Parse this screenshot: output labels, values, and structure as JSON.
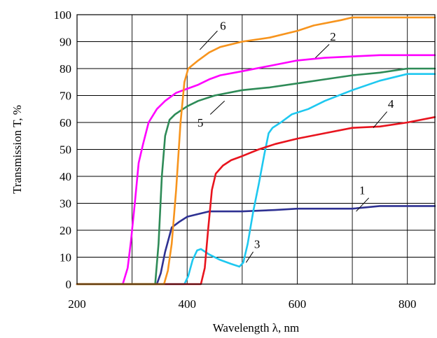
{
  "chart_data": {
    "type": "line",
    "xlabel": "Wavelength λ, nm",
    "ylabel": "Transmission T, %",
    "xlim": [
      200,
      850
    ],
    "ylim": [
      0,
      100
    ],
    "x_ticks": [
      200,
      400,
      600,
      800
    ],
    "x_grid": [
      200,
      300,
      400,
      500,
      600,
      700,
      800
    ],
    "y_ticks": [
      0,
      10,
      20,
      30,
      40,
      50,
      60,
      70,
      80,
      90,
      100
    ],
    "grid": true,
    "series": [
      {
        "name": "1",
        "color": "#2e3192",
        "points": [
          [
            200,
            0
          ],
          [
            345,
            0
          ],
          [
            352,
            4
          ],
          [
            360,
            12
          ],
          [
            372,
            21
          ],
          [
            385,
            23
          ],
          [
            400,
            25
          ],
          [
            420,
            26
          ],
          [
            440,
            27
          ],
          [
            500,
            27
          ],
          [
            560,
            27.5
          ],
          [
            600,
            28
          ],
          [
            700,
            28
          ],
          [
            750,
            29
          ],
          [
            850,
            29
          ]
        ]
      },
      {
        "name": "2",
        "color": "#ff00ff",
        "points": [
          [
            200,
            0
          ],
          [
            283,
            0
          ],
          [
            292,
            6
          ],
          [
            298,
            16
          ],
          [
            305,
            30
          ],
          [
            312,
            45
          ],
          [
            320,
            52
          ],
          [
            330,
            60
          ],
          [
            345,
            65
          ],
          [
            360,
            68
          ],
          [
            380,
            71
          ],
          [
            400,
            72.5
          ],
          [
            420,
            74
          ],
          [
            440,
            76
          ],
          [
            460,
            77.5
          ],
          [
            500,
            79
          ],
          [
            550,
            81
          ],
          [
            600,
            83
          ],
          [
            650,
            84
          ],
          [
            700,
            84.5
          ],
          [
            750,
            85
          ],
          [
            850,
            85
          ]
        ]
      },
      {
        "name": "3",
        "color": "#1ec8f0",
        "points": [
          [
            200,
            0
          ],
          [
            395,
            0
          ],
          [
            402,
            3
          ],
          [
            410,
            9
          ],
          [
            418,
            12.5
          ],
          [
            425,
            13
          ],
          [
            440,
            11
          ],
          [
            460,
            9
          ],
          [
            480,
            7.5
          ],
          [
            495,
            6.5
          ],
          [
            502,
            8
          ],
          [
            510,
            15
          ],
          [
            520,
            27
          ],
          [
            530,
            37
          ],
          [
            540,
            48
          ],
          [
            548,
            56
          ],
          [
            555,
            58
          ],
          [
            570,
            60
          ],
          [
            590,
            63
          ],
          [
            620,
            65
          ],
          [
            650,
            68
          ],
          [
            700,
            72
          ],
          [
            750,
            75.5
          ],
          [
            800,
            78
          ],
          [
            850,
            78
          ]
        ]
      },
      {
        "name": "4",
        "color": "#e8141e",
        "points": [
          [
            200,
            0
          ],
          [
            425,
            0
          ],
          [
            432,
            6
          ],
          [
            438,
            20
          ],
          [
            445,
            35
          ],
          [
            452,
            41
          ],
          [
            465,
            44
          ],
          [
            480,
            46
          ],
          [
            500,
            47.5
          ],
          [
            530,
            50
          ],
          [
            560,
            52
          ],
          [
            600,
            54
          ],
          [
            650,
            56
          ],
          [
            700,
            58
          ],
          [
            750,
            58.5
          ],
          [
            800,
            60
          ],
          [
            850,
            62
          ]
        ]
      },
      {
        "name": "5",
        "color": "#2e8b57",
        "points": [
          [
            200,
            0
          ],
          [
            342,
            0
          ],
          [
            348,
            15
          ],
          [
            354,
            40
          ],
          [
            360,
            55
          ],
          [
            368,
            61
          ],
          [
            378,
            63
          ],
          [
            400,
            66
          ],
          [
            420,
            68
          ],
          [
            450,
            70
          ],
          [
            500,
            72
          ],
          [
            550,
            73
          ],
          [
            600,
            74.5
          ],
          [
            650,
            76
          ],
          [
            700,
            77.5
          ],
          [
            750,
            78.5
          ],
          [
            800,
            80
          ],
          [
            850,
            80
          ]
        ]
      },
      {
        "name": "6",
        "color": "#f7941d",
        "points": [
          [
            200,
            0
          ],
          [
            358,
            0
          ],
          [
            365,
            5
          ],
          [
            372,
            15
          ],
          [
            380,
            35
          ],
          [
            388,
            60
          ],
          [
            395,
            75
          ],
          [
            402,
            80
          ],
          [
            420,
            83
          ],
          [
            440,
            86
          ],
          [
            460,
            88
          ],
          [
            500,
            90
          ],
          [
            550,
            91.5
          ],
          [
            600,
            94
          ],
          [
            630,
            96
          ],
          [
            680,
            98
          ],
          [
            700,
            99
          ],
          [
            750,
            99
          ],
          [
            850,
            99
          ]
        ]
      }
    ],
    "curve_labels": [
      {
        "text": "1",
        "series": "1",
        "label_at": [
          718,
          35
        ],
        "line_from": [
          707,
          27
        ],
        "line_to": [
          730,
          32
        ]
      },
      {
        "text": "2",
        "series": "2",
        "label_at": [
          665,
          92
        ],
        "line_from": [
          633,
          84
        ],
        "line_to": [
          658,
          89
        ]
      },
      {
        "text": "3",
        "series": "3",
        "label_at": [
          527,
          15
        ],
        "line_from": [
          507,
          8
        ],
        "line_to": [
          520,
          12
        ]
      },
      {
        "text": "4",
        "series": "4",
        "label_at": [
          770,
          67
        ],
        "line_from": [
          738,
          58
        ],
        "line_to": [
          763,
          64
        ]
      },
      {
        "text": "5",
        "series": "5",
        "label_at": [
          424,
          60
        ],
        "line_from": [
          442,
          63
        ],
        "line_to": [
          468,
          68
        ]
      },
      {
        "text": "6",
        "series": "6",
        "label_at": [
          465,
          96
        ],
        "line_from": [
          423,
          87
        ],
        "line_to": [
          455,
          94
        ]
      }
    ]
  }
}
